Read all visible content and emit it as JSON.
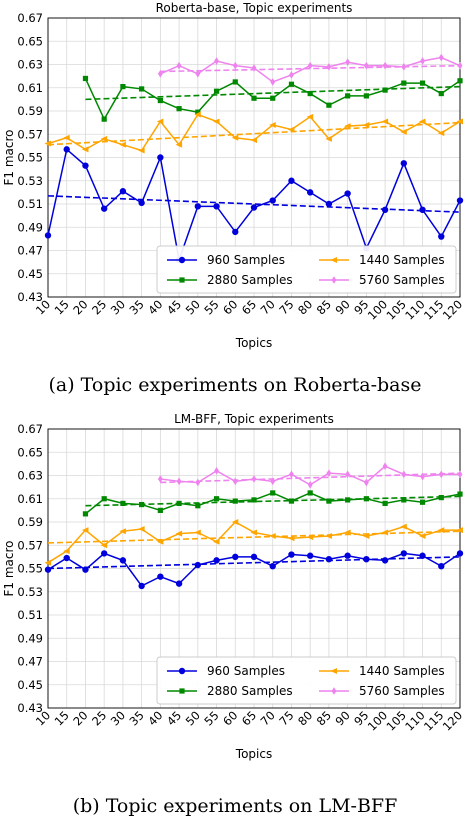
{
  "chart_data": [
    {
      "type": "line",
      "title": "Roberta-base, Topic experiments",
      "xlabel": "Topics",
      "ylabel": "F1 macro",
      "categories": [
        "10",
        "15",
        "20",
        "25",
        "30",
        "35",
        "40",
        "45",
        "50",
        "55",
        "60",
        "65",
        "70",
        "75",
        "80",
        "85",
        "90",
        "95",
        "100",
        "105",
        "110",
        "115",
        "120"
      ],
      "ylim": [
        0.43,
        0.67
      ],
      "yticks": [
        "0.43",
        "0.45",
        "0.47",
        "0.49",
        "0.51",
        "0.53",
        "0.55",
        "0.57",
        "0.59",
        "0.61",
        "0.63",
        "0.65",
        "0.67"
      ],
      "grid": true,
      "legend": "lower-right",
      "series": [
        {
          "name": "960 Samples",
          "color": "#0000dd",
          "marker": "circle",
          "values": [
            0.483,
            0.557,
            0.543,
            0.506,
            0.521,
            0.511,
            0.55,
            0.462,
            0.508,
            0.508,
            0.486,
            0.507,
            0.513,
            0.53,
            0.52,
            0.51,
            0.519,
            0.472,
            0.505,
            0.545,
            0.505,
            0.482,
            0.513
          ],
          "trend": [
            0.517,
            0.503
          ]
        },
        {
          "name": "2880 Samples",
          "color": "#008800",
          "marker": "square",
          "values": [
            null,
            null,
            0.618,
            0.583,
            0.611,
            0.609,
            0.599,
            0.592,
            0.589,
            0.607,
            0.615,
            0.601,
            0.601,
            0.613,
            0.605,
            0.595,
            0.603,
            0.603,
            0.608,
            0.614,
            0.614,
            0.605,
            0.616
          ],
          "trend": [
            0.6,
            0.611
          ]
        },
        {
          "name": "1440 Samples",
          "color": "#ffa500",
          "marker": "triangle-left",
          "values": [
            0.562,
            0.567,
            0.557,
            0.566,
            0.561,
            0.556,
            0.581,
            0.561,
            0.587,
            0.581,
            0.567,
            0.565,
            0.578,
            0.574,
            0.585,
            0.566,
            0.577,
            0.578,
            0.581,
            0.572,
            0.581,
            0.571,
            0.581
          ],
          "trend": [
            0.561,
            0.58
          ]
        },
        {
          "name": "5760 Samples",
          "color": "#ee82ee",
          "marker": "diamond",
          "values": [
            null,
            null,
            null,
            null,
            null,
            null,
            0.622,
            0.629,
            0.622,
            0.633,
            0.629,
            0.627,
            0.615,
            0.621,
            0.629,
            0.628,
            0.632,
            0.629,
            0.629,
            0.628,
            0.633,
            0.636,
            0.629
          ],
          "trend": [
            0.624,
            0.629
          ]
        }
      ]
    },
    {
      "type": "line",
      "title": "LM-BFF, Topic experiments",
      "xlabel": "Topics",
      "ylabel": "F1 macro",
      "categories": [
        "10",
        "15",
        "20",
        "25",
        "30",
        "35",
        "40",
        "45",
        "50",
        "55",
        "60",
        "65",
        "70",
        "75",
        "80",
        "85",
        "90",
        "95",
        "100",
        "105",
        "110",
        "115",
        "120"
      ],
      "ylim": [
        0.43,
        0.67
      ],
      "yticks": [
        "0.43",
        "0.45",
        "0.47",
        "0.49",
        "0.51",
        "0.53",
        "0.55",
        "0.57",
        "0.59",
        "0.61",
        "0.63",
        "0.65",
        "0.67"
      ],
      "grid": true,
      "legend": "lower-right",
      "series": [
        {
          "name": "960 Samples",
          "color": "#0000dd",
          "marker": "circle",
          "values": [
            0.549,
            0.559,
            0.549,
            0.563,
            0.557,
            0.535,
            0.543,
            0.537,
            0.553,
            0.557,
            0.56,
            0.56,
            0.552,
            0.562,
            0.561,
            0.558,
            0.561,
            0.558,
            0.557,
            0.563,
            0.561,
            0.552,
            0.563
          ],
          "trend": [
            0.55,
            0.56
          ]
        },
        {
          "name": "2880 Samples",
          "color": "#008800",
          "marker": "square",
          "values": [
            null,
            null,
            0.597,
            0.61,
            0.606,
            0.605,
            0.6,
            0.606,
            0.604,
            0.61,
            0.608,
            0.609,
            0.615,
            0.608,
            0.615,
            0.608,
            0.609,
            0.61,
            0.606,
            0.609,
            0.607,
            0.611,
            0.614
          ],
          "trend": [
            0.604,
            0.612
          ]
        },
        {
          "name": "1440 Samples",
          "color": "#ffa500",
          "marker": "triangle-left",
          "values": [
            0.555,
            0.565,
            0.583,
            0.57,
            0.582,
            0.584,
            0.573,
            0.58,
            0.581,
            0.573,
            0.59,
            0.581,
            0.578,
            0.576,
            0.577,
            0.578,
            0.581,
            0.578,
            0.581,
            0.586,
            0.578,
            0.583,
            0.583
          ],
          "trend": [
            0.572,
            0.582
          ]
        },
        {
          "name": "5760 Samples",
          "color": "#ee82ee",
          "marker": "diamond",
          "values": [
            null,
            null,
            null,
            null,
            null,
            null,
            0.627,
            0.625,
            0.624,
            0.634,
            0.625,
            0.627,
            0.625,
            0.631,
            0.622,
            0.632,
            0.631,
            0.624,
            0.638,
            0.631,
            0.629,
            0.631,
            0.631
          ],
          "trend": [
            0.624,
            0.632
          ]
        }
      ]
    }
  ],
  "captions": [
    "(a) Topic experiments on Roberta-base",
    "(b) Topic experiments on LM-BFF"
  ]
}
